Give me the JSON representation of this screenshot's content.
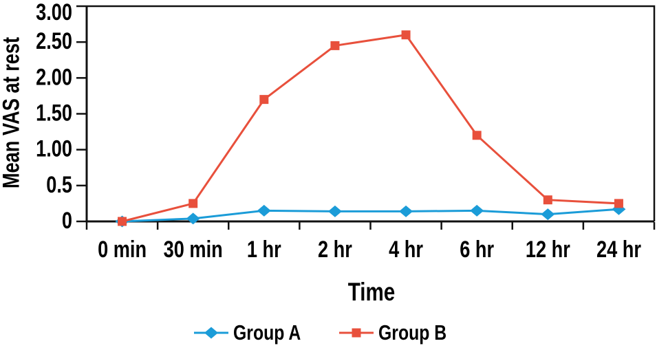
{
  "chart_data": {
    "type": "line",
    "title": "",
    "xlabel": "Time",
    "ylabel": "Mean VAS at rest",
    "categories": [
      "0 min",
      "30 min",
      "1 hr",
      "2 hr",
      "4 hr",
      "6 hr",
      "12 hr",
      "24 hr"
    ],
    "series": [
      {
        "name": "Group A",
        "marker": "diamond",
        "color": "#1b9cd8",
        "values": [
          0,
          0.04,
          0.15,
          0.14,
          0.14,
          0.15,
          0.1,
          0.17
        ]
      },
      {
        "name": "Group B",
        "marker": "square",
        "color": "#e8503c",
        "values": [
          0,
          0.25,
          1.7,
          2.45,
          2.6,
          1.2,
          0.3,
          0.25
        ]
      }
    ],
    "ylim": [
      0,
      3
    ],
    "yticks": [
      {
        "value": 0,
        "label": "0"
      },
      {
        "value": 0.5,
        "label": "0.5"
      },
      {
        "value": 1,
        "label": "1.00"
      },
      {
        "value": 1.5,
        "label": "1.50"
      },
      {
        "value": 2,
        "label": "2.00"
      },
      {
        "value": 2.5,
        "label": "2.50"
      },
      {
        "value": 3,
        "label": "3.00"
      }
    ],
    "grid": false,
    "legend_position": "bottom",
    "axis_color": "#111111",
    "text_color": "#000000"
  }
}
